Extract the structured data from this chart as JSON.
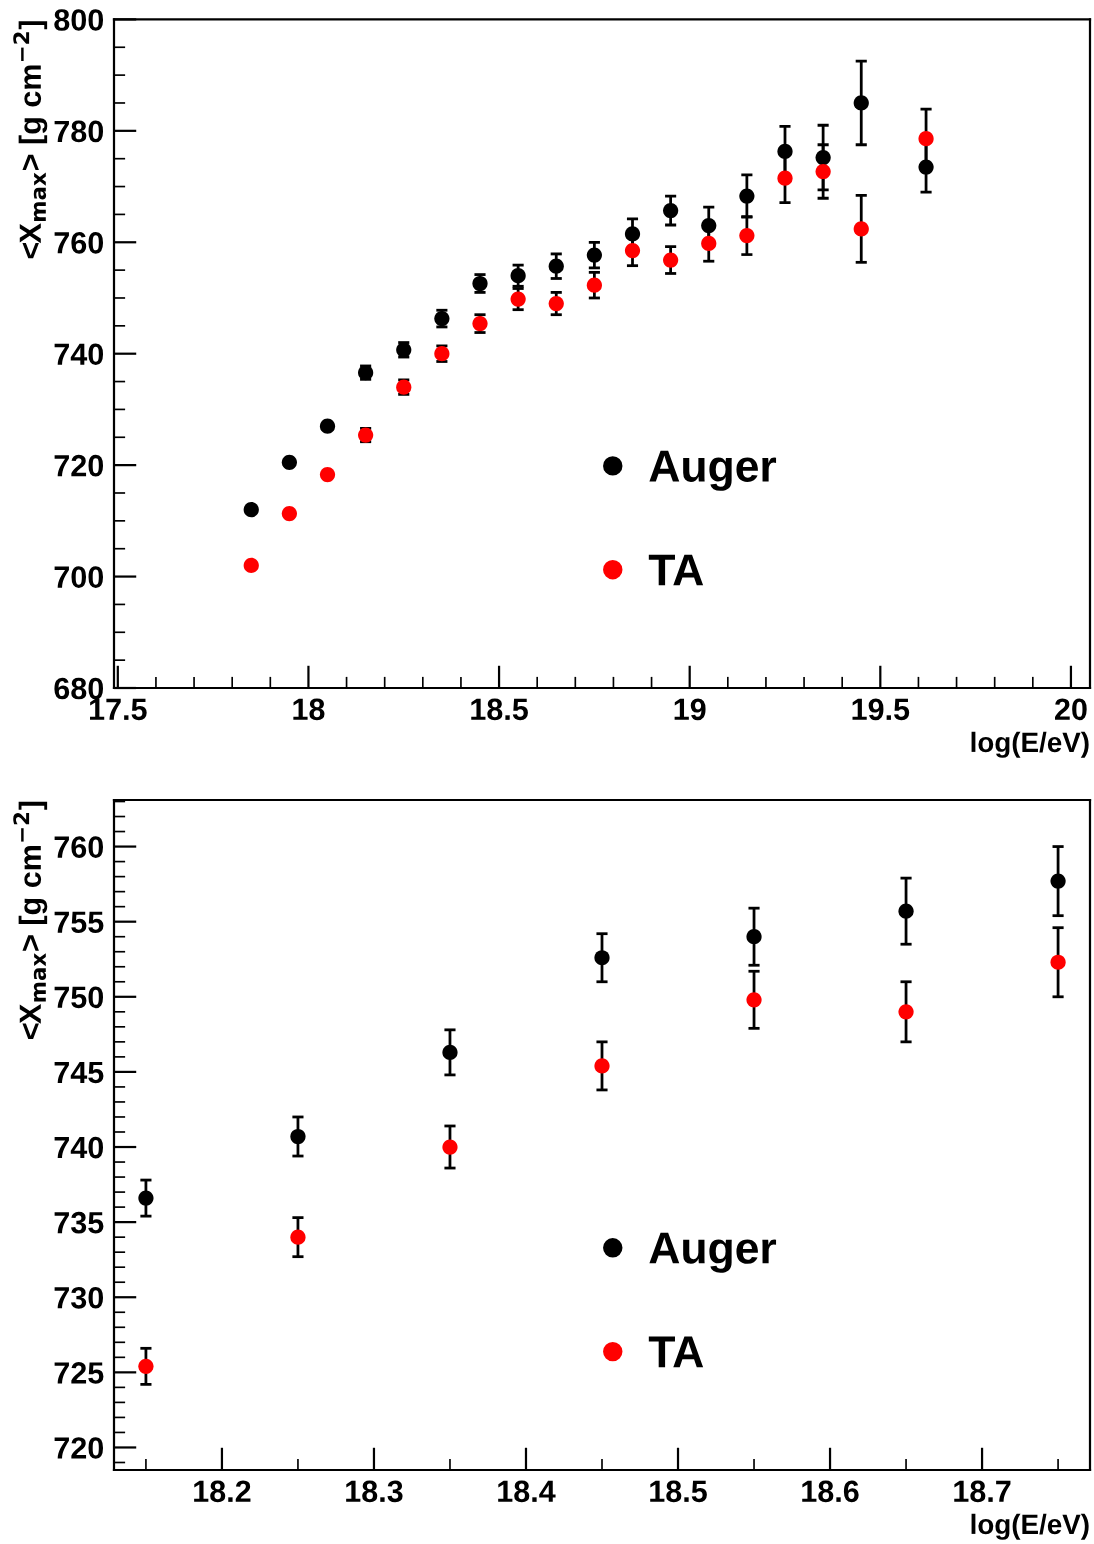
{
  "chart_data": [
    {
      "type": "scatter",
      "xlabel": "log(E/eV)",
      "ylabel": "<X$_{max}$> [g cm$^{−2}$]",
      "xlim": [
        17.49,
        20.05
      ],
      "xticks": [
        17.5,
        18,
        18.5,
        19,
        19.5,
        20
      ],
      "ylim": [
        680,
        800
      ],
      "yticks": [
        680,
        700,
        720,
        740,
        760,
        780,
        800
      ],
      "grid": false,
      "legend": "bottom right",
      "marker": "circle",
      "x": [
        17.85,
        17.95,
        18.05,
        18.15,
        18.25,
        18.35,
        18.45,
        18.55,
        18.65,
        18.75,
        18.85,
        18.95,
        19.05,
        19.15,
        19.25,
        19.35,
        19.45,
        19.62
      ],
      "series": [
        {
          "name": "Auger",
          "color": "#000000",
          "values": [
            712,
            720.5,
            727,
            736.6,
            740.7,
            746.3,
            752.6,
            754,
            755.7,
            757.7,
            761.5,
            765.7,
            763,
            768.3,
            776.3,
            775.2,
            785,
            773.5
          ],
          "errors": [
            null,
            null,
            null,
            1.2,
            1.3,
            1.5,
            1.6,
            1.9,
            2.2,
            2.3,
            2.7,
            2.6,
            3.3,
            3.8,
            4.5,
            5.8,
            7.5,
            4.5
          ]
        },
        {
          "name": "TA",
          "color": "#ff0000",
          "values": [
            702,
            711.3,
            718.3,
            725.4,
            734,
            740,
            745.4,
            749.8,
            749,
            752.3,
            758.5,
            756.8,
            759.8,
            761.2,
            771.5,
            772.7,
            762.4,
            778.6
          ],
          "errors": [
            null,
            null,
            null,
            1.2,
            1.3,
            1.4,
            1.6,
            1.9,
            2,
            2.3,
            2.7,
            2.4,
            3.2,
            3.4,
            4.4,
            4.8,
            6,
            5.3
          ]
        }
      ]
    },
    {
      "type": "scatter",
      "xlabel": "log(E/eV)",
      "ylabel": "<X$_{max}$> [g cm$^{−2}$]",
      "xlim": [
        18.129,
        18.771
      ],
      "xticks": [
        18.2,
        18.3,
        18.4,
        18.5,
        18.6,
        18.7
      ],
      "ylim": [
        718.5,
        763.1
      ],
      "yticks": [
        720,
        725,
        730,
        735,
        740,
        745,
        750,
        755,
        760
      ],
      "grid": false,
      "legend": "bottom right",
      "marker": "circle",
      "x": [
        18.15,
        18.25,
        18.35,
        18.45,
        18.55,
        18.65,
        18.75
      ],
      "series": [
        {
          "name": "Auger",
          "color": "#000000",
          "values": [
            736.6,
            740.7,
            746.3,
            752.6,
            754,
            755.7,
            757.7
          ],
          "errors": [
            1.2,
            1.3,
            1.5,
            1.6,
            1.9,
            2.2,
            2.3
          ]
        },
        {
          "name": "TA",
          "color": "#ff0000",
          "values": [
            725.4,
            734,
            740,
            745.4,
            749.8,
            749,
            752.3
          ],
          "errors": [
            1.2,
            1.3,
            1.4,
            1.6,
            1.9,
            2,
            2.3
          ]
        }
      ]
    }
  ]
}
